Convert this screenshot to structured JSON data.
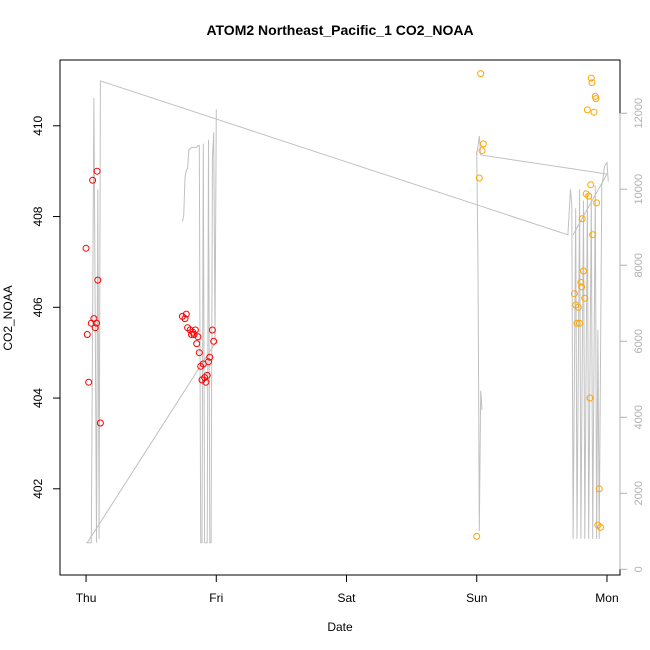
{
  "chart_data": {
    "type": "scatter",
    "title": "ATOM2 Northeast_Pacific_1 CO2_NOAA",
    "xlabel": "Date",
    "ylabel": "CO2_NOAA",
    "x_unit": "days (Thu = 0)",
    "x_ticks": [
      {
        "value": 0,
        "label": "Thu"
      },
      {
        "value": 1,
        "label": "Fri"
      },
      {
        "value": 2,
        "label": "Sat"
      },
      {
        "value": 3,
        "label": "Sun"
      },
      {
        "value": 4,
        "label": "Mon"
      }
    ],
    "xlim": [
      -0.2,
      4.1
    ],
    "ylim": [
      400.1,
      411.45
    ],
    "y_ticks": [
      402,
      404,
      406,
      408,
      410
    ],
    "y2_ticks": [
      0,
      2000,
      4000,
      6000,
      8000,
      10000,
      12000
    ],
    "y2lim": [
      -150,
      13400
    ],
    "grid": false,
    "colors": {
      "red_points": "#ff0000",
      "orange_points": "#ffa500",
      "altitude_line": "#c0c0c0",
      "axes": "#000000"
    },
    "series": [
      {
        "marker": "open-circle",
        "color": "#ff0000",
        "points": [
          [
            0.0,
            407.3
          ],
          [
            0.01,
            405.4
          ],
          [
            0.02,
            404.35
          ],
          [
            0.04,
            405.65
          ],
          [
            0.05,
            408.8
          ],
          [
            0.06,
            405.75
          ],
          [
            0.07,
            405.55
          ],
          [
            0.08,
            405.65
          ],
          [
            0.085,
            409.0
          ],
          [
            0.09,
            406.6
          ],
          [
            0.11,
            403.45
          ],
          [
            0.74,
            405.8
          ],
          [
            0.76,
            405.75
          ],
          [
            0.77,
            405.85
          ],
          [
            0.78,
            405.55
          ],
          [
            0.8,
            405.5
          ],
          [
            0.81,
            405.4
          ],
          [
            0.82,
            405.45
          ],
          [
            0.83,
            405.4
          ],
          [
            0.84,
            405.5
          ],
          [
            0.85,
            405.2
          ],
          [
            0.86,
            405.35
          ],
          [
            0.87,
            405.0
          ],
          [
            0.88,
            404.7
          ],
          [
            0.89,
            404.4
          ],
          [
            0.9,
            404.75
          ],
          [
            0.91,
            404.45
          ],
          [
            0.92,
            404.35
          ],
          [
            0.93,
            404.5
          ],
          [
            0.94,
            404.8
          ],
          [
            0.95,
            404.9
          ],
          [
            0.97,
            405.5
          ],
          [
            0.98,
            405.25
          ]
        ]
      },
      {
        "marker": "open-circle",
        "color": "#ffa500",
        "points": [
          [
            3.0,
            400.95
          ],
          [
            3.02,
            408.85
          ],
          [
            3.03,
            411.15
          ],
          [
            3.04,
            409.45
          ],
          [
            3.05,
            409.6
          ],
          [
            3.75,
            406.3
          ],
          [
            3.76,
            406.05
          ],
          [
            3.77,
            405.65
          ],
          [
            3.78,
            406.0
          ],
          [
            3.79,
            405.65
          ],
          [
            3.8,
            406.55
          ],
          [
            3.805,
            406.45
          ],
          [
            3.81,
            407.95
          ],
          [
            3.82,
            406.8
          ],
          [
            3.83,
            406.2
          ],
          [
            3.84,
            408.5
          ],
          [
            3.85,
            410.35
          ],
          [
            3.86,
            408.45
          ],
          [
            3.87,
            404.0
          ],
          [
            3.875,
            408.7
          ],
          [
            3.88,
            411.05
          ],
          [
            3.885,
            410.95
          ],
          [
            3.89,
            407.6
          ],
          [
            3.9,
            410.3
          ],
          [
            3.91,
            410.65
          ],
          [
            3.915,
            410.6
          ],
          [
            3.92,
            408.3
          ],
          [
            3.93,
            401.2
          ],
          [
            3.94,
            402.0
          ],
          [
            3.95,
            401.15
          ]
        ]
      }
    ],
    "altitude_line": {
      "axis": "right",
      "color": "#c0c0c0",
      "points": [
        [
          0.0,
          300
        ],
        [
          0.01,
          1200
        ],
        [
          0.02,
          9000
        ],
        [
          0.03,
          12700
        ],
        [
          0.04,
          11000
        ],
        [
          0.05,
          3000
        ],
        [
          0.06,
          700
        ],
        [
          0.07,
          1500
        ],
        [
          0.08,
          9500
        ],
        [
          0.09,
          600
        ],
        [
          0.1,
          1500
        ],
        [
          0.11,
          12800
        ],
        [
          0.12,
          10000
        ],
        [
          0.13,
          12650
        ],
        [
          3.7,
          8000
        ],
        [
          3.71,
          10000
        ],
        [
          3.72,
          10000
        ],
        [
          3.73,
          9600
        ],
        [
          3.74,
          700
        ],
        [
          3.75,
          500
        ],
        [
          3.76,
          10500
        ],
        [
          3.77,
          9700
        ],
        [
          3.78,
          300
        ],
        [
          3.79,
          9300
        ],
        [
          3.8,
          300
        ],
        [
          3.81,
          7000
        ],
        [
          3.82,
          300
        ],
        [
          3.84,
          10000
        ],
        [
          3.85,
          11000
        ],
        [
          3.86,
          10500
        ],
        [
          3.87,
          300
        ],
        [
          3.88,
          10200
        ],
        [
          3.89,
          6700
        ],
        [
          3.9,
          300
        ],
        [
          3.91,
          9700
        ],
        [
          3.92,
          300
        ],
        [
          3.94,
          1000
        ],
        [
          3.95,
          9800
        ],
        [
          3.96,
          10100
        ],
        [
          3.97,
          10300
        ],
        [
          3.98,
          10500
        ],
        [
          3.99,
          10750
        ],
        [
          4.0,
          11000
        ],
        [
          4.01,
          11200
        ],
        [
          4.02,
          11350
        ],
        [
          3.02,
          9600
        ],
        [
          2.98,
          11200
        ],
        [
          2.99,
          10800
        ],
        [
          3.0,
          10300
        ],
        [
          3.01,
          8000
        ],
        [
          3.02,
          1000
        ],
        [
          3.03,
          4700
        ],
        [
          3.04,
          4200
        ],
        [
          3.05,
          3800
        ]
      ],
      "segments": [
        [
          [
            0.0,
            700
          ],
          [
            0.04,
            700
          ],
          [
            0.06,
            12400
          ],
          [
            0.07,
            6700
          ],
          [
            0.08,
            700
          ],
          [
            0.09,
            10000
          ],
          [
            0.1,
            800
          ],
          [
            0.11,
            12850
          ],
          [
            3.7,
            8800
          ],
          [
            3.72,
            10000
          ],
          [
            3.73,
            9600
          ],
          [
            3.74,
            800
          ],
          [
            3.76,
            9500
          ],
          [
            3.77,
            800
          ],
          [
            3.79,
            10000
          ],
          [
            3.8,
            800
          ],
          [
            3.82,
            9700
          ],
          [
            3.83,
            800
          ],
          [
            3.85,
            9900
          ],
          [
            3.86,
            800
          ],
          [
            3.88,
            9800
          ],
          [
            3.89,
            800
          ],
          [
            3.91,
            10100
          ],
          [
            3.92,
            800
          ],
          [
            3.93,
            6300
          ],
          [
            3.94,
            800
          ],
          [
            3.96,
            10100
          ],
          [
            3.97,
            10300
          ],
          [
            3.98,
            10600
          ],
          [
            4.0,
            10700
          ],
          [
            4.01,
            10200
          ]
        ],
        [
          [
            0.01,
            700
          ],
          [
            1.0,
            6000
          ]
        ],
        [
          [
            0.74,
            9150
          ],
          [
            0.75,
            9300
          ],
          [
            0.76,
            10300
          ],
          [
            0.77,
            10500
          ],
          [
            0.78,
            10550
          ],
          [
            0.79,
            11050
          ],
          [
            0.8,
            11050
          ],
          [
            0.81,
            11100
          ],
          [
            0.82,
            11100
          ],
          [
            0.83,
            11100
          ],
          [
            0.84,
            11100
          ],
          [
            0.85,
            11100
          ],
          [
            0.86,
            11150
          ],
          [
            0.87,
            11150
          ],
          [
            0.88,
            700
          ],
          [
            0.89,
            700
          ],
          [
            0.9,
            11200
          ],
          [
            0.91,
            700
          ],
          [
            0.92,
            700
          ],
          [
            0.93,
            700
          ],
          [
            0.94,
            11300
          ],
          [
            0.95,
            700
          ],
          [
            0.96,
            700
          ],
          [
            0.97,
            10800
          ],
          [
            0.98,
            11500
          ],
          [
            0.99,
            6000
          ],
          [
            1.0,
            12100
          ]
        ],
        [
          [
            3.0,
            10900
          ],
          [
            3.02,
            11400
          ],
          [
            3.03,
            10900
          ],
          [
            4.0,
            10400
          ],
          [
            3.74,
            8800
          ]
        ],
        [
          [
            3.0,
            11000
          ],
          [
            3.01,
            8000
          ],
          [
            3.02,
            1000
          ],
          [
            3.03,
            4700
          ],
          [
            3.04,
            4200
          ]
        ]
      ]
    }
  }
}
